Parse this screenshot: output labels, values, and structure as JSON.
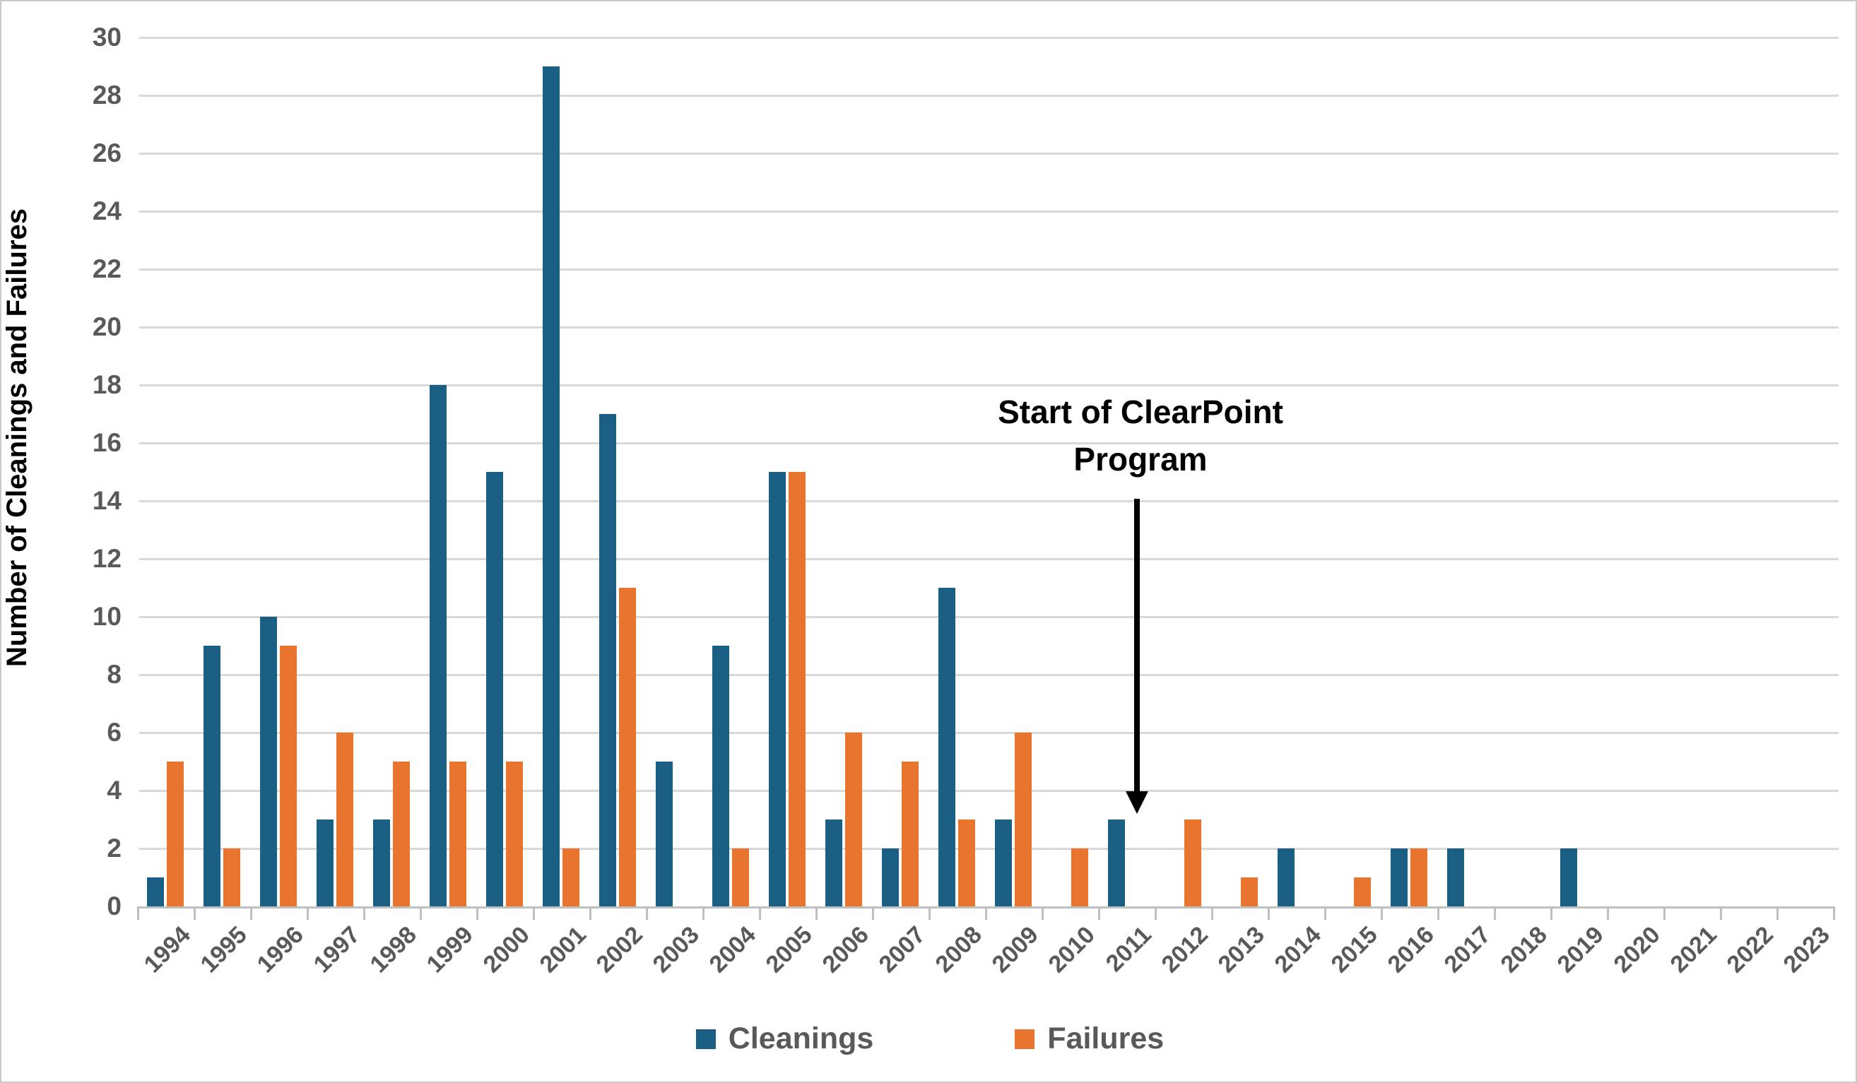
{
  "chart_data": {
    "type": "bar",
    "title": "",
    "xlabel": "",
    "ylabel": "Number of Cleanings and Failures",
    "ylim": [
      0,
      30
    ],
    "ytick_step": 2,
    "yticks": [
      0,
      2,
      4,
      6,
      8,
      10,
      12,
      14,
      16,
      18,
      20,
      22,
      24,
      26,
      28,
      30
    ],
    "grid": true,
    "legend_position": "bottom-center",
    "categories": [
      "1994",
      "1995",
      "1996",
      "1997",
      "1998",
      "1999",
      "2000",
      "2001",
      "2002",
      "2003",
      "2004",
      "2005",
      "2006",
      "2007",
      "2008",
      "2009",
      "2010",
      "2011",
      "2012",
      "2013",
      "2014",
      "2015",
      "2016",
      "2017",
      "2018",
      "2019",
      "2020",
      "2021",
      "2022",
      "2023"
    ],
    "series": [
      {
        "name": "Cleanings",
        "color": "#1A5E83",
        "values": [
          1,
          9,
          10,
          3,
          3,
          18,
          15,
          29,
          17,
          5,
          9,
          15,
          3,
          2,
          11,
          3,
          0,
          3,
          0,
          0,
          2,
          0,
          2,
          2,
          0,
          2,
          0,
          0,
          0,
          0
        ]
      },
      {
        "name": "Failures",
        "color": "#E8742F",
        "values": [
          5,
          2,
          9,
          6,
          5,
          5,
          5,
          2,
          11,
          0,
          2,
          15,
          6,
          5,
          3,
          6,
          2,
          0,
          3,
          1,
          0,
          1,
          2,
          0,
          0,
          0,
          0,
          0,
          0,
          0
        ]
      }
    ],
    "annotation": {
      "lines": [
        "Start of ClearPoint",
        "Program"
      ],
      "text": "Start of ClearPoint Program",
      "arrow_points_between": "2011 and 2012"
    }
  },
  "colors": {
    "cleanings": "#1A5E83",
    "failures": "#E8742F",
    "gridline": "#D9D9D9",
    "axis_line": "#BFBFBF",
    "tick_text": "#595959",
    "annotation_text": "#000000"
  }
}
